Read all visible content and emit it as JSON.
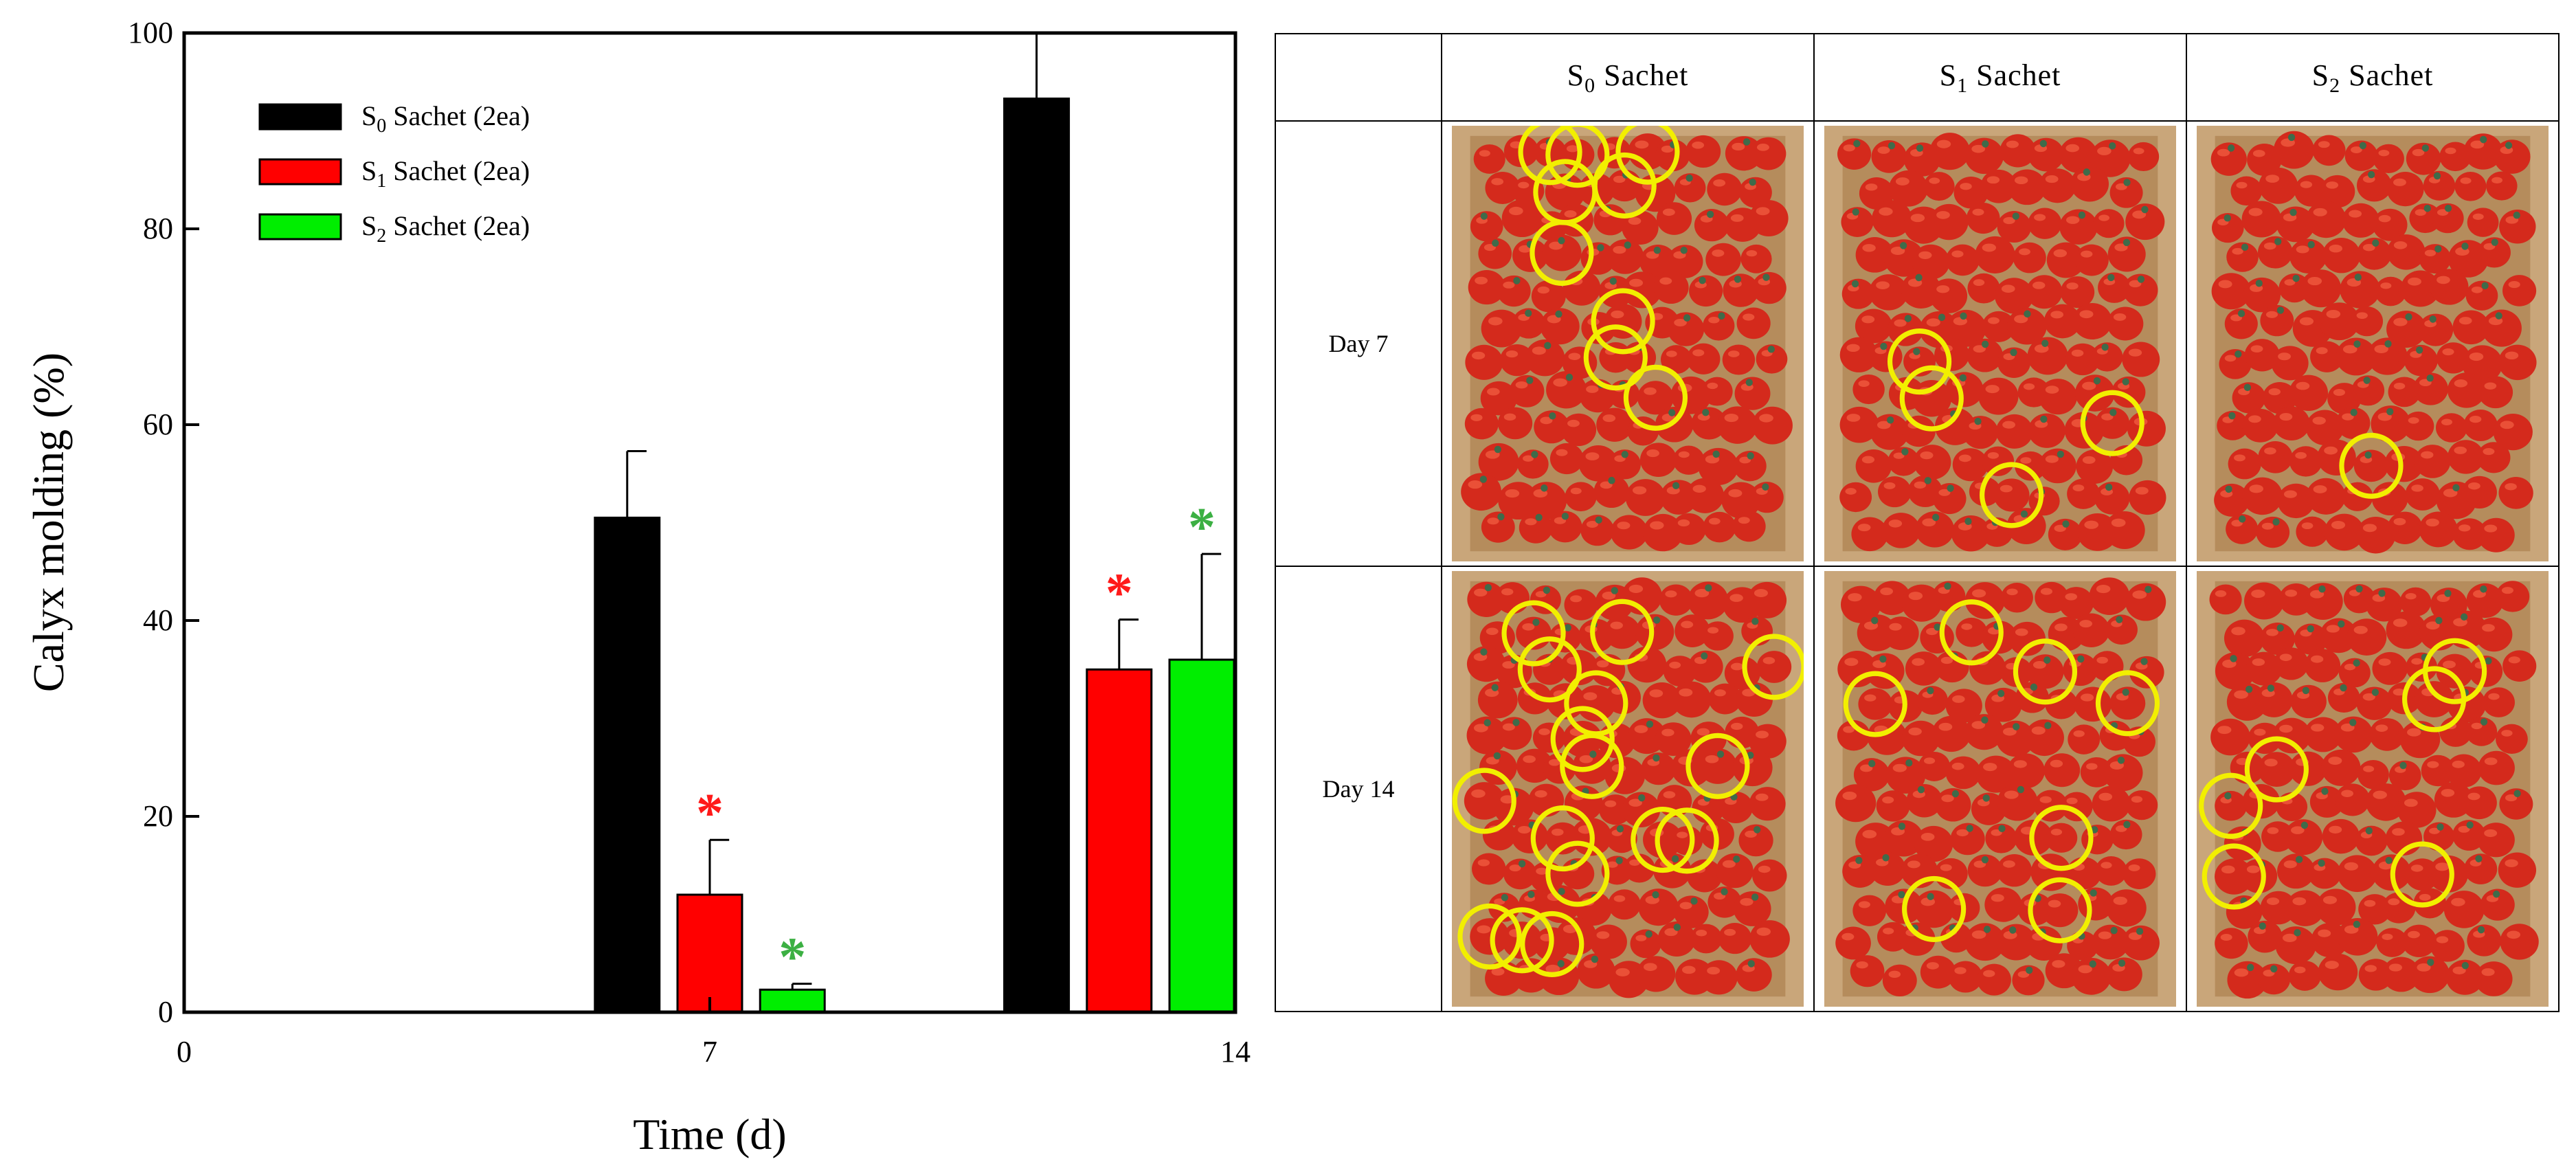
{
  "chart_data": {
    "type": "bar",
    "xlabel": "Time (d)",
    "ylabel": "Calyx molding (%)",
    "ylim": [
      0,
      100
    ],
    "yticks": [
      "0",
      "20",
      "40",
      "60",
      "80",
      "100"
    ],
    "xlim": [
      0,
      14
    ],
    "xticks": [
      "0",
      "7",
      "14"
    ],
    "categories": [
      7,
      14
    ],
    "legend_position": "top-left",
    "series": [
      {
        "name_base": "S",
        "name_sub": "0",
        "name_suffix": " Sachet (2ea)",
        "color": "#000000",
        "values": [
          50.5,
          93.3
        ],
        "errors": [
          6.8,
          7.0
        ],
        "significant": [
          false,
          false
        ]
      },
      {
        "name_base": "S",
        "name_sub": "1",
        "name_suffix": " Sachet (2ea)",
        "color": "#ff0000",
        "values": [
          12.0,
          35.0
        ],
        "errors": [
          5.6,
          5.1
        ],
        "significant": [
          true,
          true
        ],
        "star_color": "#ff1a1a"
      },
      {
        "name_base": "S",
        "name_sub": "2",
        "name_suffix": " Sachet (2ea)",
        "color": "#00ee00",
        "values": [
          2.3,
          36.0
        ],
        "errors": [
          0.6,
          10.8
        ],
        "significant": [
          true,
          true
        ],
        "star_color": "#3cb043"
      }
    ],
    "significance_marker": "*"
  },
  "photo_table": {
    "columns": [
      {
        "base": "S",
        "sub": "0",
        "suffix": " Sachet"
      },
      {
        "base": "S",
        "sub": "1",
        "suffix": " Sachet"
      },
      {
        "base": "S",
        "sub": "2",
        "suffix": " Sachet"
      }
    ],
    "rows": [
      {
        "label": "Day 7",
        "circle_counts": [
          9,
          4,
          1
        ]
      },
      {
        "label": "Day 14",
        "circle_counts": [
          16,
          7,
          6
        ]
      }
    ],
    "colors": {
      "circle": "#f2ef00",
      "box": "#c9a67a",
      "box_inner": "#b58c5c",
      "tomato": "#d42a1c",
      "tomato_highlight": "#ef5a3e",
      "stem": "#3f6b4a"
    }
  }
}
